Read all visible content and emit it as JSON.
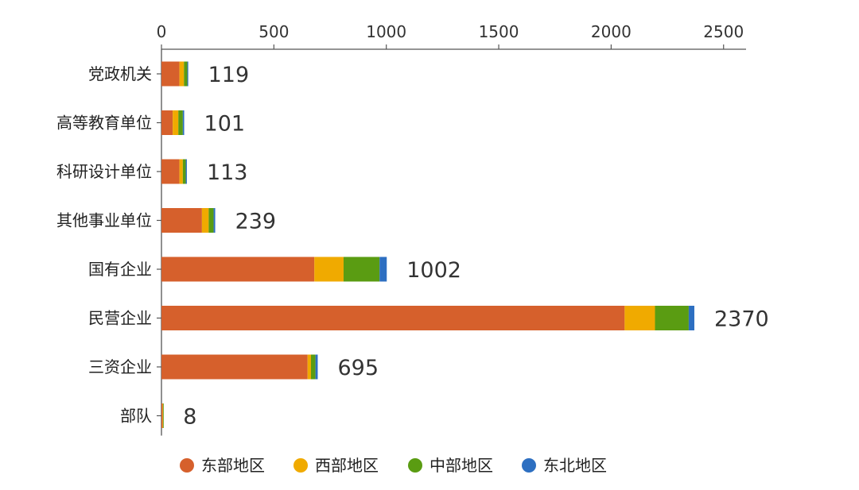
{
  "chart_data": {
    "type": "bar",
    "orientation": "horizontal",
    "stacked": true,
    "title": "",
    "xlabel": "",
    "ylabel": "",
    "xlim": [
      0,
      2600
    ],
    "x_ticks": [
      0,
      500,
      1000,
      1500,
      2000,
      2500
    ],
    "axis_position": "top",
    "grid": false,
    "legend_position": "bottom",
    "categories": [
      "党政机关",
      "高等教育单位",
      "科研设计单位",
      "其他事业单位",
      "国有企业",
      "民营企业",
      "三资企业",
      "部队"
    ],
    "totals": [
      119,
      101,
      113,
      239,
      1002,
      2370,
      695,
      8
    ],
    "series": [
      {
        "name": "东部地区",
        "color": "#d6602c",
        "values": [
          80,
          50,
          80,
          180,
          680,
          2060,
          650,
          5
        ]
      },
      {
        "name": "西部地区",
        "color": "#f0aa00",
        "values": [
          20,
          25,
          15,
          30,
          130,
          135,
          15,
          2
        ]
      },
      {
        "name": "中部地区",
        "color": "#5a9c12",
        "values": [
          15,
          20,
          13,
          22,
          160,
          150,
          20,
          1
        ]
      },
      {
        "name": "东北地区",
        "color": "#2d6fc1",
        "values": [
          4,
          6,
          5,
          7,
          32,
          25,
          10,
          0
        ]
      }
    ]
  }
}
